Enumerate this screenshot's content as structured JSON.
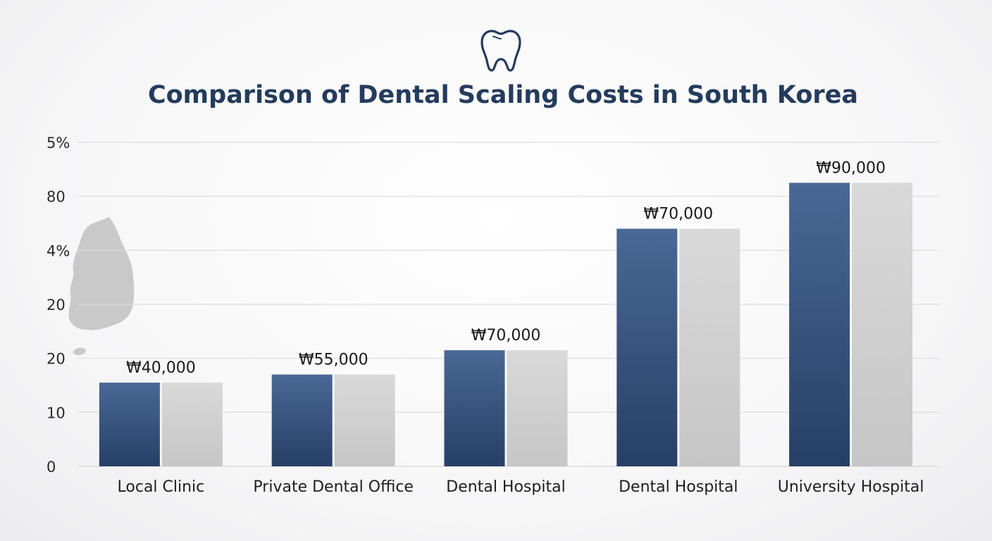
{
  "icon": "tooth-icon",
  "map_icon": "south-korea-map-icon",
  "colors": {
    "title": "#243b5c",
    "series_primary_top": "#4a6896",
    "series_primary_bottom": "#263f66",
    "series_secondary_top": "#d9d9d9",
    "series_secondary_bottom": "#c6c6c6",
    "grid": "#dcdcdc",
    "map": "#c9c9c9"
  },
  "chart_data": {
    "type": "bar",
    "title": "Comparison of Dental Scaling Costs in South Korea",
    "xlabel": "",
    "ylabel": "",
    "y_tick_labels": [
      "0",
      "10",
      "20",
      "20",
      "4%",
      "80",
      "5%"
    ],
    "grid": true,
    "legend": "none",
    "categories": [
      "Local Clinic",
      "Private Dental Office",
      "Dental Hospital",
      "Dental Hospital",
      "University Hospital"
    ],
    "value_labels": [
      "₩40,000",
      "₩55,000",
      "₩70,000",
      "₩70,000",
      "₩90,000"
    ],
    "series": [
      {
        "values": [
          1.55,
          1.7,
          2.15,
          4.4,
          5.25
        ]
      },
      {
        "values": [
          1.55,
          1.7,
          2.15,
          4.4,
          5.25
        ]
      }
    ],
    "ylim": [
      0,
      6
    ]
  }
}
